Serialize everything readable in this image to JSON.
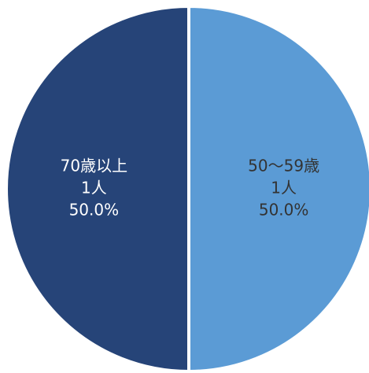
{
  "chart_data": {
    "type": "pie",
    "title": "",
    "slices": [
      {
        "label": "50～59歳",
        "count_label": "1人",
        "percent_label": "50.0%",
        "value": 1,
        "percent": 50.0,
        "color": "#5b9bd5",
        "text_color": "#333333"
      },
      {
        "label": "70歳以上",
        "count_label": "1人",
        "percent_label": "50.0%",
        "value": 1,
        "percent": 50.0,
        "color": "#264478",
        "text_color": "#ffffff"
      }
    ]
  }
}
